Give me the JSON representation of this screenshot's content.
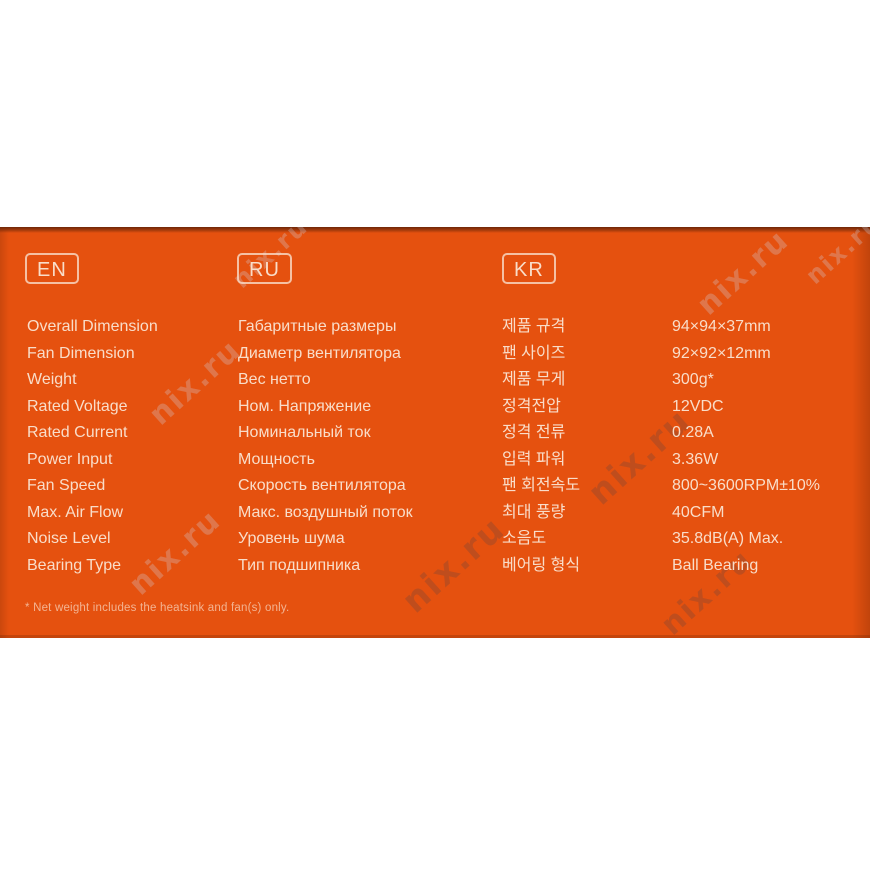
{
  "watermark": {
    "text": "nix.ru"
  },
  "panel": {
    "languages": [
      {
        "code": "EN"
      },
      {
        "code": "RU"
      },
      {
        "code": "KR"
      }
    ],
    "rows": [
      {
        "en": "Overall Dimension",
        "ru": "Габаритные размеры",
        "kr": "제품 규격",
        "value": "94×94×37mm"
      },
      {
        "en": "Fan Dimension",
        "ru": "Диаметр вентилятора",
        "kr": "팬 사이즈",
        "value": "92×92×12mm"
      },
      {
        "en": "Weight",
        "ru": "Вес нетто",
        "kr": "제품 무게",
        "value": "300g*"
      },
      {
        "en": "Rated Voltage",
        "ru": "Ном. Напряжение",
        "kr": "정격전압",
        "value": "12VDC"
      },
      {
        "en": "Rated Current",
        "ru": "Номинальный ток",
        "kr": "정격 전류",
        "value": "0.28A"
      },
      {
        "en": "Power Input",
        "ru": "Мощность",
        "kr": "입력 파워",
        "value": "3.36W"
      },
      {
        "en": "Fan Speed",
        "ru": "Скорость вентилятора",
        "kr": "팬 회전속도",
        "value": "800~3600RPM±10%"
      },
      {
        "en": "Max. Air Flow",
        "ru": "Макс. воздушный поток",
        "kr": "최대 풍량",
        "value": "40CFM"
      },
      {
        "en": "Noise Level",
        "ru": "Уровень шума",
        "kr": "소음도",
        "value": "35.8dB(A) Max."
      },
      {
        "en": "Bearing Type",
        "ru": "Тип подшипника",
        "kr": "베어링 형식",
        "value": "Ball Bearing"
      }
    ],
    "footnote": "* Net weight includes the heatsink and fan(s) only.",
    "colors": {
      "panel_orange": "#e5510f",
      "text_cream": "#f9ddc9",
      "edge_dark": "#6f2707"
    }
  }
}
